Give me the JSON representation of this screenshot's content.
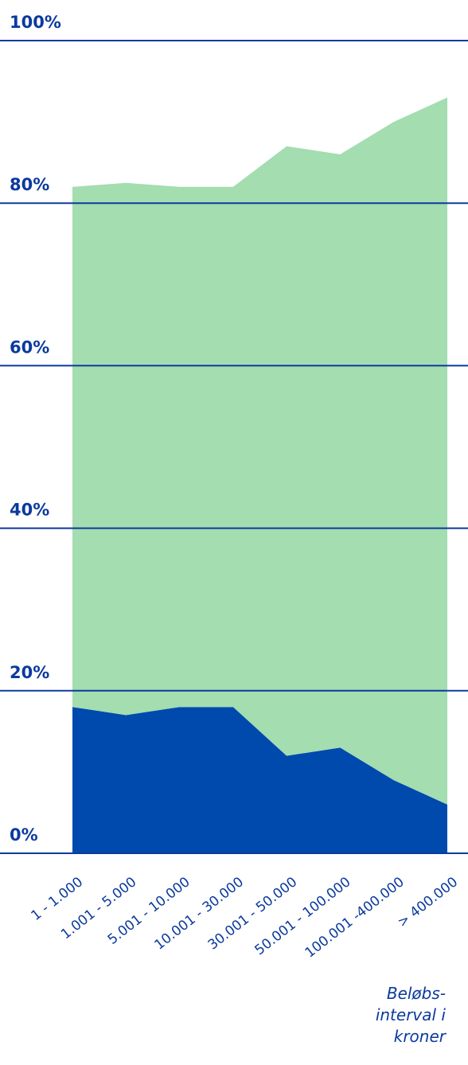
{
  "chart_data": {
    "type": "area",
    "stacked": true,
    "categories": [
      "1 - 1.000",
      "1.001 - 5.000",
      "5.001 - 10.000",
      "10.001 - 30.000",
      "30.001 - 50.000",
      "50.001 - 100.000",
      "100.001 -400.000",
      "> 400.000"
    ],
    "series": [
      {
        "values": [
          18,
          17,
          18,
          18,
          12,
          13,
          9,
          6
        ],
        "color": "#004aad"
      },
      {
        "values": [
          64,
          65.5,
          64,
          64,
          75,
          73,
          81,
          87
        ],
        "color": "#a3ddb0"
      }
    ],
    "y_ticks": [
      {
        "value": 0,
        "label": "0%"
      },
      {
        "value": 20,
        "label": "20%"
      },
      {
        "value": 40,
        "label": "40%"
      },
      {
        "value": 60,
        "label": "60%"
      },
      {
        "value": 80,
        "label": "80%"
      },
      {
        "value": 100,
        "label": "100%"
      }
    ],
    "ylim": [
      0,
      100
    ],
    "xlabel": [
      "Beløbs-",
      "interval i",
      "kroner"
    ],
    "grid": true,
    "text_color": "#0b3a9e",
    "grid_color": "#0b3a9e"
  }
}
